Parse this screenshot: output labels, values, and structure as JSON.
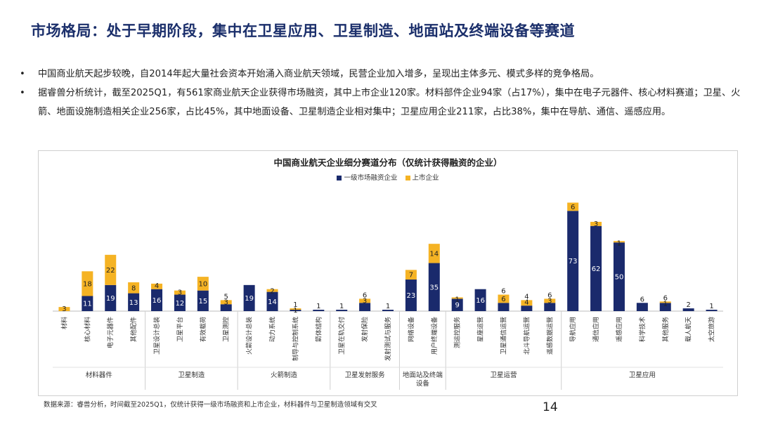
{
  "title": "市场格局：处于早期阶段，集中在卫星应用、卫星制造、地面站及终端设备等赛道",
  "bullet_symbol": "•",
  "bullets": [
    "中国商业航天起步较晚，自2014年起大量社会资本开始涌入商业航天领域，民营企业加入增多，呈现出主体多元、模式多样的竞争格局。",
    "据睿兽分析统计，截至2025Q1，有561家商业航天企业获得市场融资，其中上市企业120家。材料部件企业94家（占17%），集中在电子元器件、核心材料赛道；卫星、火箭、地面设施制造相关企业256家，占比45%，其中地面设备、卫星制造企业相对集中；卫星应用企业211家，占比38%，集中在导航、通信、遥感应用。"
  ],
  "footnote": "数据来源：睿兽分析，时间截至2025Q1，仅统计获得一级市场融资和上市企业，材料器件与卫星制造领域有交叉",
  "page_number": "14",
  "colors": {
    "primary": "#1a2a6c",
    "listed": "#f5b324",
    "title": "#1b2f6b"
  },
  "chart_data": {
    "type": "bar",
    "stacked": true,
    "title": "中国商业航天企业细分赛道分布（仅统计获得融资的企业）",
    "legend_position": "top-center",
    "categories": [
      "材料",
      "核心材料",
      "电子元器件",
      "其他配件",
      "卫星设计总装",
      "卫星平台",
      "有效载荷",
      "卫星测控",
      "火箭设计总装",
      "动力系统",
      "制导与控制系统",
      "箭体结构",
      "卫星在轨交付",
      "发射保险",
      "发射测试与服务",
      "网络设备",
      "用户终端设备",
      "测运控服务",
      "星座运营",
      "卫星通信运营",
      "北斗导航运营",
      "遥感数据运营",
      "导航应用",
      "通信应用",
      "遥感应用",
      "科学技术",
      "其他服务",
      "载人航天",
      "太空旅游"
    ],
    "series": [
      {
        "name": "一级市场融资企业",
        "values": [
          0,
          11,
          19,
          13,
          16,
          12,
          15,
          5,
          19,
          14,
          1,
          1,
          1,
          6,
          1,
          23,
          35,
          9,
          16,
          6,
          4,
          6,
          73,
          62,
          50,
          6,
          6,
          2,
          1
        ]
      },
      {
        "name": "上市企业",
        "values": [
          3,
          18,
          22,
          8,
          4,
          3,
          10,
          3,
          0,
          2,
          1,
          0,
          0,
          3,
          0,
          7,
          14,
          1,
          0,
          6,
          4,
          3,
          6,
          3,
          1,
          0,
          1,
          0,
          0
        ]
      }
    ],
    "groups": [
      {
        "name": "材料器件",
        "count": 4
      },
      {
        "name": "卫星制造",
        "count": 4
      },
      {
        "name": "火箭制造",
        "count": 4
      },
      {
        "name": "卫星发射服务",
        "count": 3
      },
      {
        "name": "地面站及终端设备",
        "count": 2
      },
      {
        "name": "卫星运营",
        "count": 5
      },
      {
        "name": "卫星应用",
        "count": 7
      }
    ],
    "ylim": [
      0,
      90
    ],
    "grid": false
  }
}
